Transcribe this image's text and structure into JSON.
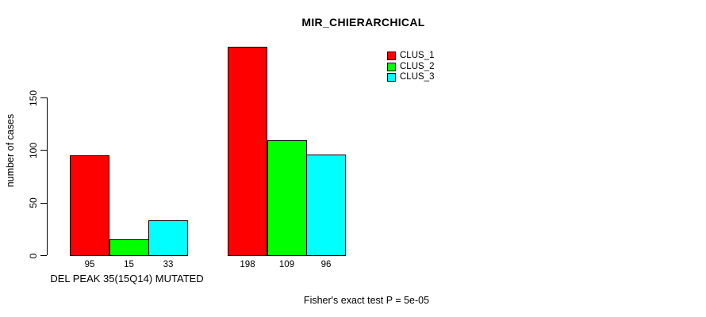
{
  "chart_data": {
    "type": "bar",
    "title": "MIR_CHIERARCHICAL",
    "ylabel": "number of cases",
    "xlabel": "",
    "categories": [
      "DEL PEAK 35(15Q14) MUTATED",
      ""
    ],
    "series": [
      {
        "name": "CLUS_1",
        "color": "#ff0000",
        "values": [
          95,
          198
        ]
      },
      {
        "name": "CLUS_2",
        "color": "#00ff00",
        "values": [
          15,
          109
        ]
      },
      {
        "name": "CLUS_3",
        "color": "#00ffff",
        "values": [
          33,
          96
        ]
      }
    ],
    "y_ticks": [
      0,
      50,
      100,
      150
    ],
    "ylim": [
      0,
      200
    ],
    "grid": false,
    "bar_value_labels_shown": true,
    "legend_position": "top-right",
    "annotation": "Fisher's exact test P = 5e-05"
  }
}
